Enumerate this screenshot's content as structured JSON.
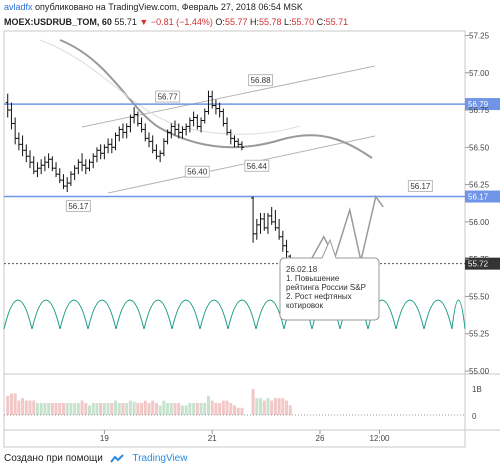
{
  "header": {
    "author": "avladfx",
    "published": "опубликовано на TradingView.com, Февраль 27, 2018 06:54 MSK",
    "symbol": "MOEX:USDRUB_TOM, 60",
    "last": "55.71",
    "change": "−0.81 (−1.44%)",
    "o_label": "O:",
    "o_value": "55.77",
    "h_label": "H:",
    "h_value": "55.78",
    "l_label": "L:",
    "l_value": "55.70",
    "c_label": "C:",
    "c_value": "55.71"
  },
  "footer": {
    "created": "Создано при помощи",
    "brand": "TradingView"
  },
  "colors": {
    "accent": "#2a6fd6",
    "hline": "#6f94e8",
    "cycles": "#1e9e87",
    "down": "#d32f2f",
    "bars": "#111111"
  },
  "chart_data": {
    "type": "candlestick",
    "y_range": [
      54.98,
      57.28
    ],
    "y_ticks": [
      "57.25",
      "57.00",
      "56.75",
      "56.50",
      "56.25",
      "56.00",
      "55.75",
      "55.50",
      "55.25",
      "55.00"
    ],
    "x_ticks": [
      {
        "label": "19",
        "t": 26
      },
      {
        "label": "21",
        "t": 55
      },
      {
        "label": "26",
        "t": 84
      },
      {
        "label": "12:00",
        "t": 100
      }
    ],
    "x_range": [
      -1,
      123
    ],
    "hlines": [
      {
        "value": 56.79,
        "label": "56.79"
      },
      {
        "value": 56.17,
        "label": "56.17"
      },
      {
        "value": 55.72,
        "label": "55.72",
        "dashed": true
      }
    ],
    "price_labels": [
      {
        "text": "56.17",
        "t": 19,
        "price": 56.17
      },
      {
        "text": "56.77",
        "t": 43,
        "price": 56.77
      },
      {
        "text": "56.40",
        "t": 51,
        "price": 56.4
      },
      {
        "text": "56.44",
        "t": 67,
        "price": 56.44
      },
      {
        "text": "56.88",
        "t": 68,
        "price": 56.88
      },
      {
        "text": "56.17",
        "t": 111,
        "price": 56.17
      }
    ],
    "ohlc": [
      [
        56.8,
        56.86,
        56.7,
        56.75
      ],
      [
        56.75,
        56.8,
        56.62,
        56.66
      ],
      [
        56.66,
        56.7,
        56.52,
        56.56
      ],
      [
        56.56,
        56.6,
        56.48,
        56.52
      ],
      [
        56.52,
        56.58,
        56.44,
        56.48
      ],
      [
        56.48,
        56.52,
        56.4,
        56.44
      ],
      [
        56.44,
        56.48,
        56.36,
        56.4
      ],
      [
        56.4,
        56.44,
        56.32,
        56.34
      ],
      [
        56.34,
        56.4,
        56.3,
        56.36
      ],
      [
        56.36,
        56.42,
        56.32,
        56.38
      ],
      [
        56.38,
        56.44,
        56.34,
        56.4
      ],
      [
        56.4,
        56.46,
        56.36,
        56.42
      ],
      [
        56.42,
        56.44,
        56.34,
        56.36
      ],
      [
        56.36,
        56.4,
        56.3,
        56.32
      ],
      [
        56.32,
        56.36,
        56.26,
        56.28
      ],
      [
        56.28,
        56.32,
        56.22,
        56.24
      ],
      [
        56.24,
        56.3,
        56.2,
        56.26
      ],
      [
        56.26,
        56.34,
        56.24,
        56.32
      ],
      [
        56.32,
        56.38,
        56.28,
        56.36
      ],
      [
        56.36,
        56.42,
        56.32,
        56.4
      ],
      [
        56.4,
        56.46,
        56.34,
        56.38
      ],
      [
        56.38,
        56.42,
        56.32,
        56.36
      ],
      [
        56.36,
        56.42,
        56.34,
        56.4
      ],
      [
        56.4,
        56.46,
        56.36,
        56.44
      ],
      [
        56.44,
        56.5,
        56.4,
        56.48
      ],
      [
        56.48,
        56.52,
        56.42,
        56.46
      ],
      [
        56.46,
        56.52,
        56.42,
        56.5
      ],
      [
        56.5,
        56.56,
        56.46,
        56.52
      ],
      [
        56.52,
        56.56,
        56.46,
        56.5
      ],
      [
        56.5,
        56.6,
        56.48,
        56.58
      ],
      [
        56.58,
        56.64,
        56.54,
        56.62
      ],
      [
        56.62,
        56.66,
        56.56,
        56.6
      ],
      [
        56.6,
        56.66,
        56.56,
        56.64
      ],
      [
        56.64,
        56.72,
        56.6,
        56.7
      ],
      [
        56.7,
        56.77,
        56.66,
        56.72
      ],
      [
        56.72,
        56.74,
        56.64,
        56.66
      ],
      [
        56.66,
        56.7,
        56.6,
        56.62
      ],
      [
        56.62,
        56.66,
        56.54,
        56.56
      ],
      [
        56.56,
        56.6,
        56.5,
        56.54
      ],
      [
        56.54,
        56.58,
        56.46,
        56.48
      ],
      [
        56.48,
        56.52,
        56.42,
        56.44
      ],
      [
        56.44,
        56.48,
        56.4,
        56.46
      ],
      [
        56.46,
        56.56,
        56.44,
        56.54
      ],
      [
        56.54,
        56.62,
        56.52,
        56.6
      ],
      [
        56.6,
        56.66,
        56.56,
        56.64
      ],
      [
        56.64,
        56.68,
        56.58,
        56.62
      ],
      [
        56.62,
        56.66,
        56.56,
        56.6
      ],
      [
        56.6,
        56.64,
        56.56,
        56.62
      ],
      [
        56.62,
        56.66,
        56.58,
        56.64
      ],
      [
        56.64,
        56.7,
        56.6,
        56.68
      ],
      [
        56.68,
        56.74,
        56.64,
        56.7
      ],
      [
        56.7,
        56.72,
        56.62,
        56.64
      ],
      [
        56.64,
        56.7,
        56.6,
        56.68
      ],
      [
        56.68,
        56.76,
        56.66,
        56.74
      ],
      [
        56.74,
        56.88,
        56.72,
        56.84
      ],
      [
        56.84,
        56.88,
        56.76,
        56.78
      ],
      [
        56.78,
        56.82,
        56.72,
        56.76
      ],
      [
        56.76,
        56.8,
        56.7,
        56.74
      ],
      [
        56.74,
        56.76,
        56.64,
        56.66
      ],
      [
        56.66,
        56.7,
        56.58,
        56.6
      ],
      [
        56.6,
        56.62,
        56.52,
        56.56
      ],
      [
        56.56,
        56.58,
        56.5,
        56.54
      ],
      [
        56.54,
        56.56,
        56.5,
        56.52
      ],
      [
        56.52,
        56.54,
        56.48,
        56.5
      ],
      [
        56.16,
        56.17,
        55.86,
        55.92
      ],
      [
        55.92,
        56.02,
        55.88,
        55.98
      ],
      [
        55.98,
        56.06,
        55.92,
        56.02
      ],
      [
        56.02,
        56.06,
        55.94,
        55.96
      ],
      [
        55.96,
        56.06,
        55.92,
        56.04
      ],
      [
        56.04,
        56.1,
        55.98,
        56.0
      ],
      [
        56.0,
        56.08,
        55.94,
        55.96
      ],
      [
        55.96,
        56.02,
        55.88,
        55.9
      ],
      [
        55.9,
        55.94,
        55.8,
        55.84
      ],
      [
        55.84,
        55.88,
        55.76,
        55.8
      ],
      [
        55.77,
        55.78,
        55.7,
        55.71
      ]
    ],
    "forecast_path": [
      [
        81,
        55.72
      ],
      [
        85,
        55.9
      ],
      [
        88,
        55.76
      ],
      [
        92,
        56.08
      ],
      [
        95,
        55.74
      ],
      [
        99,
        56.17
      ],
      [
        101,
        56.1
      ]
    ]
  },
  "annotation": {
    "date": "26.02.18",
    "line1": "1. Повышение",
    "line2": "рейтинга России S&P",
    "line3": "2. Рост нефтяных",
    "line4": "котировок"
  },
  "volume_axis": {
    "ticks": [
      "1B",
      "0"
    ]
  }
}
